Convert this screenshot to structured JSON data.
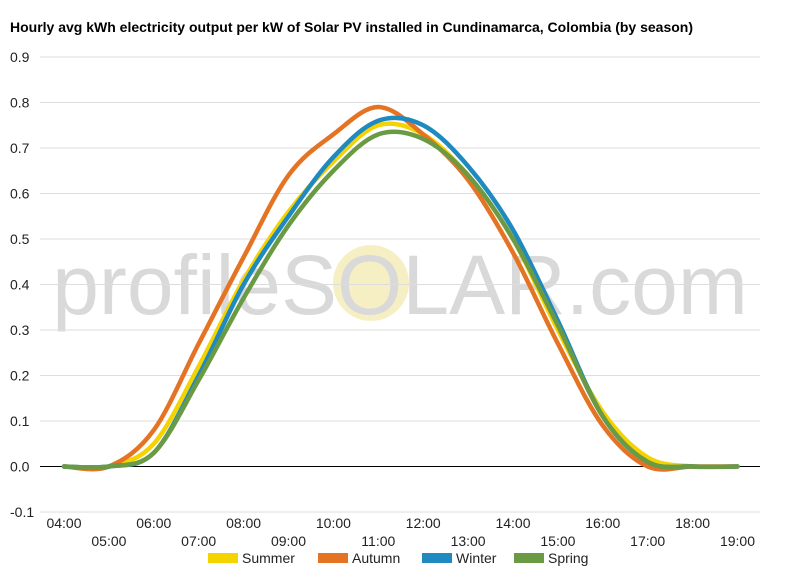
{
  "chart_data": {
    "type": "line",
    "title": "Hourly avg kWh electricity output per kW of Solar PV installed in Cundinamarca, Colombia (by season)",
    "xlabel": "",
    "ylabel": "",
    "x": [
      "04:00",
      "05:00",
      "06:00",
      "07:00",
      "08:00",
      "09:00",
      "10:00",
      "11:00",
      "12:00",
      "13:00",
      "14:00",
      "15:00",
      "16:00",
      "17:00",
      "18:00",
      "19:00"
    ],
    "ylim": [
      -0.1,
      0.9
    ],
    "yticks": [
      "-0.1",
      "0.0",
      "0.1",
      "0.2",
      "0.3",
      "0.4",
      "0.5",
      "0.6",
      "0.7",
      "0.8",
      "0.9"
    ],
    "series": [
      {
        "name": "Summer",
        "color": "#f5d300",
        "values": [
          0.0,
          0.0,
          0.05,
          0.22,
          0.41,
          0.56,
          0.67,
          0.75,
          0.73,
          0.64,
          0.5,
          0.3,
          0.12,
          0.02,
          0.0,
          0.0
        ]
      },
      {
        "name": "Autumn",
        "color": "#e57324",
        "values": [
          0.0,
          0.0,
          0.08,
          0.27,
          0.46,
          0.64,
          0.73,
          0.79,
          0.73,
          0.63,
          0.47,
          0.27,
          0.09,
          0.0,
          0.0,
          0.0
        ]
      },
      {
        "name": "Winter",
        "color": "#1f8ac0",
        "values": [
          0.0,
          0.0,
          0.03,
          0.2,
          0.4,
          0.55,
          0.68,
          0.76,
          0.75,
          0.66,
          0.52,
          0.32,
          0.11,
          0.01,
          0.0,
          0.0
        ]
      },
      {
        "name": "Spring",
        "color": "#6b9a45",
        "values": [
          0.0,
          0.0,
          0.03,
          0.19,
          0.37,
          0.53,
          0.65,
          0.73,
          0.72,
          0.64,
          0.5,
          0.31,
          0.11,
          0.01,
          0.0,
          0.0
        ]
      }
    ],
    "grid": true,
    "legend_position": "bottom",
    "watermark": "profileSOLAR.com"
  }
}
